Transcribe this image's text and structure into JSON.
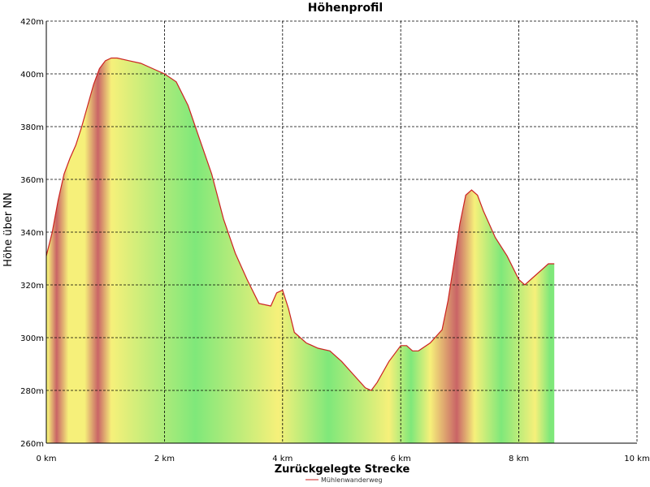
{
  "chart_data": {
    "type": "area",
    "title": "Höhenprofil",
    "xlabel": "Zurückgelegte Strecke",
    "ylabel": "Höhe über NN",
    "xlim": [
      0,
      10
    ],
    "ylim": [
      260,
      420
    ],
    "x_ticks": [
      {
        "value": 0,
        "label": "0 km"
      },
      {
        "value": 2,
        "label": "2 km"
      },
      {
        "value": 4,
        "label": "4 km"
      },
      {
        "value": 6,
        "label": "6 km"
      },
      {
        "value": 8,
        "label": "8 km"
      },
      {
        "value": 10,
        "label": "10 km"
      }
    ],
    "y_ticks": [
      {
        "value": 260,
        "label": "260m"
      },
      {
        "value": 280,
        "label": "280m"
      },
      {
        "value": 300,
        "label": "300m"
      },
      {
        "value": 320,
        "label": "320m"
      },
      {
        "value": 340,
        "label": "340m"
      },
      {
        "value": 360,
        "label": "360m"
      },
      {
        "value": 380,
        "label": "380m"
      },
      {
        "value": 400,
        "label": "400m"
      },
      {
        "value": 420,
        "label": "420m"
      }
    ],
    "grid": true,
    "legend_position": "bottom-center",
    "series": [
      {
        "name": "Mühlenwanderweg",
        "color": "#cc2222",
        "x": [
          0,
          0.1,
          0.2,
          0.3,
          0.4,
          0.5,
          0.6,
          0.7,
          0.8,
          0.9,
          1.0,
          1.1,
          1.2,
          1.4,
          1.6,
          1.8,
          2.0,
          2.2,
          2.4,
          2.6,
          2.8,
          3.0,
          3.2,
          3.4,
          3.6,
          3.8,
          3.9,
          4.0,
          4.1,
          4.2,
          4.4,
          4.6,
          4.8,
          5.0,
          5.2,
          5.4,
          5.5,
          5.6,
          5.8,
          6.0,
          6.1,
          6.2,
          6.3,
          6.5,
          6.7,
          6.8,
          6.9,
          7.0,
          7.1,
          7.2,
          7.3,
          7.4,
          7.5,
          7.6,
          7.8,
          8.0,
          8.1,
          8.2,
          8.4,
          8.5,
          8.6
        ],
        "y": [
          331,
          340,
          352,
          362,
          368,
          373,
          380,
          388,
          396,
          402,
          405,
          406,
          406,
          405,
          404,
          402,
          400,
          397,
          388,
          375,
          362,
          345,
          332,
          322,
          313,
          312,
          317,
          318,
          311,
          302,
          298,
          296,
          295,
          291,
          286,
          281,
          280,
          283,
          291,
          297,
          297,
          295,
          295,
          298,
          303,
          314,
          328,
          343,
          354,
          356,
          354,
          348,
          343,
          338,
          331,
          322,
          320,
          322,
          326,
          328,
          328
        ]
      }
    ],
    "gradient_colors": {
      "red": "#c96466",
      "yellow": "#f6f07a",
      "green": "#7fe87a"
    },
    "slope_bands": [
      {
        "x_start": 0.0,
        "x_end": 0.05,
        "level": "yellow"
      },
      {
        "x_start": 0.05,
        "x_end": 0.3,
        "level": "red"
      },
      {
        "x_start": 0.3,
        "x_end": 0.45,
        "level": "yellow"
      },
      {
        "x_start": 0.45,
        "x_end": 0.55,
        "level": "yellow"
      },
      {
        "x_start": 0.55,
        "x_end": 0.75,
        "level": "yellow"
      },
      {
        "x_start": 0.75,
        "x_end": 1.0,
        "level": "red"
      },
      {
        "x_start": 1.0,
        "x_end": 1.2,
        "level": "yellow"
      },
      {
        "x_start": 1.2,
        "x_end": 3.85,
        "level": "green"
      },
      {
        "x_start": 3.85,
        "x_end": 4.0,
        "level": "yellow"
      },
      {
        "x_start": 4.0,
        "x_end": 5.55,
        "level": "green"
      },
      {
        "x_start": 5.55,
        "x_end": 6.05,
        "level": "yellow"
      },
      {
        "x_start": 6.05,
        "x_end": 6.3,
        "level": "green"
      },
      {
        "x_start": 6.3,
        "x_end": 6.7,
        "level": "yellow"
      },
      {
        "x_start": 6.7,
        "x_end": 7.2,
        "level": "red"
      },
      {
        "x_start": 7.2,
        "x_end": 7.3,
        "level": "yellow"
      },
      {
        "x_start": 7.3,
        "x_end": 8.1,
        "level": "green"
      },
      {
        "x_start": 8.1,
        "x_end": 8.45,
        "level": "yellow"
      },
      {
        "x_start": 8.45,
        "x_end": 8.6,
        "level": "green"
      }
    ]
  }
}
